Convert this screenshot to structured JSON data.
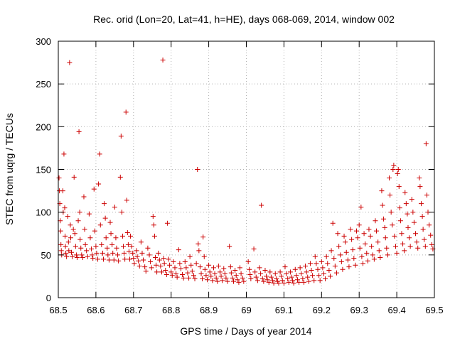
{
  "chart_data": {
    "type": "scatter",
    "title": "Rec. orid (Lon=20, Lat=41, h=HE), days 068-069, 2014, window 002",
    "xlabel": "GPS time / Days of year 2014",
    "ylabel": "STEC from uqrg / TECUs",
    "xlim": [
      68.5,
      69.5
    ],
    "ylim": [
      0,
      300
    ],
    "xticks": [
      68.5,
      68.6,
      68.7,
      68.8,
      68.9,
      69.0,
      69.1,
      69.2,
      69.3,
      69.4,
      69.5
    ],
    "xtick_labels": [
      "68.5",
      "68.6",
      "68.7",
      "68.8",
      "68.9",
      "69",
      "69.1",
      "69.2",
      "69.3",
      "69.4",
      "69.5"
    ],
    "yticks": [
      0,
      50,
      100,
      150,
      200,
      250,
      300
    ],
    "ytick_labels": [
      "0",
      "50",
      "100",
      "150",
      "200",
      "250",
      "300"
    ],
    "grid": true,
    "marker": "+",
    "color": "#cc0000",
    "points": [
      [
        68.502,
        140
      ],
      [
        68.503,
        125
      ],
      [
        68.504,
        110
      ],
      [
        68.505,
        90
      ],
      [
        68.506,
        78
      ],
      [
        68.507,
        62
      ],
      [
        68.508,
        55
      ],
      [
        68.509,
        50
      ],
      [
        68.512,
        125
      ],
      [
        68.513,
        100
      ],
      [
        68.515,
        168
      ],
      [
        68.517,
        105
      ],
      [
        68.518,
        72
      ],
      [
        68.519,
        60
      ],
      [
        68.52,
        52
      ],
      [
        68.522,
        48
      ],
      [
        68.525,
        95
      ],
      [
        68.527,
        65
      ],
      [
        68.528,
        55
      ],
      [
        68.53,
        275
      ],
      [
        68.532,
        85
      ],
      [
        68.533,
        70
      ],
      [
        68.535,
        53
      ],
      [
        68.537,
        48
      ],
      [
        68.54,
        80
      ],
      [
        68.542,
        141
      ],
      [
        68.544,
        75
      ],
      [
        68.546,
        60
      ],
      [
        68.548,
        50
      ],
      [
        68.55,
        47
      ],
      [
        68.553,
        90
      ],
      [
        68.555,
        194
      ],
      [
        68.557,
        100
      ],
      [
        68.558,
        68
      ],
      [
        68.56,
        58
      ],
      [
        68.562,
        50
      ],
      [
        68.565,
        47
      ],
      [
        68.568,
        118
      ],
      [
        68.57,
        80
      ],
      [
        68.572,
        62
      ],
      [
        68.575,
        55
      ],
      [
        68.578,
        48
      ],
      [
        68.582,
        98
      ],
      [
        68.585,
        70
      ],
      [
        68.588,
        57
      ],
      [
        68.59,
        50
      ],
      [
        68.592,
        46
      ],
      [
        68.595,
        127
      ],
      [
        68.597,
        78
      ],
      [
        68.6,
        60
      ],
      [
        68.602,
        52
      ],
      [
        68.605,
        45
      ],
      [
        68.607,
        133
      ],
      [
        68.61,
        168
      ],
      [
        68.612,
        85
      ],
      [
        68.615,
        62
      ],
      [
        68.618,
        52
      ],
      [
        68.62,
        45
      ],
      [
        68.622,
        110
      ],
      [
        68.625,
        93
      ],
      [
        68.627,
        70
      ],
      [
        68.63,
        58
      ],
      [
        68.632,
        50
      ],
      [
        68.635,
        44
      ],
      [
        68.638,
        88
      ],
      [
        68.64,
        75
      ],
      [
        68.643,
        62
      ],
      [
        68.645,
        52
      ],
      [
        68.648,
        44
      ],
      [
        68.65,
        106
      ],
      [
        68.653,
        70
      ],
      [
        68.655,
        58
      ],
      [
        68.658,
        50
      ],
      [
        68.66,
        43
      ],
      [
        68.665,
        141
      ],
      [
        68.667,
        189
      ],
      [
        68.669,
        100
      ],
      [
        68.671,
        72
      ],
      [
        68.673,
        60
      ],
      [
        68.675,
        52
      ],
      [
        68.677,
        45
      ],
      [
        68.68,
        217
      ],
      [
        68.682,
        114
      ],
      [
        68.684,
        76
      ],
      [
        68.686,
        62
      ],
      [
        68.688,
        54
      ],
      [
        68.69,
        45
      ],
      [
        68.692,
        72
      ],
      [
        68.695,
        60
      ],
      [
        68.698,
        52
      ],
      [
        68.7,
        46
      ],
      [
        68.702,
        40
      ],
      [
        68.708,
        55
      ],
      [
        68.71,
        48
      ],
      [
        68.713,
        43
      ],
      [
        68.716,
        37
      ],
      [
        68.72,
        65
      ],
      [
        68.723,
        52
      ],
      [
        68.726,
        44
      ],
      [
        68.73,
        36
      ],
      [
        68.733,
        31
      ],
      [
        68.738,
        58
      ],
      [
        68.742,
        50
      ],
      [
        68.745,
        42
      ],
      [
        68.748,
        35
      ],
      [
        68.752,
        95
      ],
      [
        68.754,
        85
      ],
      [
        68.756,
        72
      ],
      [
        68.758,
        47
      ],
      [
        68.76,
        38
      ],
      [
        68.762,
        30
      ],
      [
        68.766,
        52
      ],
      [
        68.769,
        44
      ],
      [
        68.772,
        37
      ],
      [
        68.775,
        30
      ],
      [
        68.778,
        278
      ],
      [
        68.78,
        46
      ],
      [
        68.782,
        40
      ],
      [
        68.785,
        32
      ],
      [
        68.788,
        27
      ],
      [
        68.79,
        87
      ],
      [
        68.793,
        45
      ],
      [
        68.796,
        38
      ],
      [
        68.8,
        30
      ],
      [
        68.803,
        26
      ],
      [
        68.806,
        42
      ],
      [
        68.81,
        35
      ],
      [
        68.813,
        28
      ],
      [
        68.816,
        24
      ],
      [
        68.82,
        56
      ],
      [
        68.823,
        40
      ],
      [
        68.826,
        34
      ],
      [
        68.83,
        27
      ],
      [
        68.833,
        23
      ],
      [
        68.837,
        42
      ],
      [
        68.84,
        35
      ],
      [
        68.844,
        29
      ],
      [
        68.847,
        23
      ],
      [
        68.85,
        48
      ],
      [
        68.853,
        38
      ],
      [
        68.856,
        31
      ],
      [
        68.86,
        26
      ],
      [
        68.863,
        22
      ],
      [
        68.867,
        40
      ],
      [
        68.87,
        150
      ],
      [
        68.872,
        63
      ],
      [
        68.874,
        55
      ],
      [
        68.877,
        36
      ],
      [
        68.88,
        28
      ],
      [
        68.883,
        22
      ],
      [
        68.885,
        71
      ],
      [
        68.888,
        48
      ],
      [
        68.89,
        33
      ],
      [
        68.893,
        26
      ],
      [
        68.896,
        21
      ],
      [
        68.9,
        38
      ],
      [
        68.903,
        30
      ],
      [
        68.906,
        25
      ],
      [
        68.91,
        20
      ],
      [
        68.913,
        35
      ],
      [
        68.916,
        28
      ],
      [
        68.92,
        23
      ],
      [
        68.923,
        19
      ],
      [
        68.926,
        37
      ],
      [
        68.93,
        30
      ],
      [
        68.933,
        25
      ],
      [
        68.936,
        20
      ],
      [
        68.94,
        34
      ],
      [
        68.943,
        28
      ],
      [
        68.946,
        23
      ],
      [
        68.95,
        19
      ],
      [
        68.955,
        60
      ],
      [
        68.958,
        36
      ],
      [
        68.96,
        29
      ],
      [
        68.963,
        23
      ],
      [
        68.966,
        19
      ],
      [
        68.97,
        32
      ],
      [
        68.973,
        26
      ],
      [
        68.976,
        21
      ],
      [
        68.98,
        18
      ],
      [
        68.983,
        35
      ],
      [
        68.986,
        28
      ],
      [
        68.99,
        23
      ],
      [
        68.993,
        19
      ],
      [
        69.005,
        42
      ],
      [
        69.008,
        33
      ],
      [
        69.01,
        27
      ],
      [
        69.012,
        22
      ],
      [
        69.02,
        57
      ],
      [
        69.023,
        30
      ],
      [
        69.026,
        24
      ],
      [
        69.03,
        20
      ],
      [
        69.035,
        35
      ],
      [
        69.038,
        28
      ],
      [
        69.04,
        108
      ],
      [
        69.043,
        22
      ],
      [
        69.046,
        19
      ],
      [
        69.05,
        32
      ],
      [
        69.053,
        25
      ],
      [
        69.056,
        21
      ],
      [
        69.06,
        18
      ],
      [
        69.063,
        30
      ],
      [
        69.066,
        24
      ],
      [
        69.07,
        20
      ],
      [
        69.073,
        17
      ],
      [
        69.077,
        28
      ],
      [
        69.08,
        22
      ],
      [
        69.083,
        19
      ],
      [
        69.086,
        17
      ],
      [
        69.09,
        30
      ],
      [
        69.093,
        25
      ],
      [
        69.096,
        20
      ],
      [
        69.1,
        17
      ],
      [
        69.103,
        36
      ],
      [
        69.106,
        28
      ],
      [
        69.11,
        22
      ],
      [
        69.113,
        18
      ],
      [
        69.117,
        30
      ],
      [
        69.12,
        24
      ],
      [
        69.123,
        20
      ],
      [
        69.126,
        17
      ],
      [
        69.13,
        33
      ],
      [
        69.133,
        26
      ],
      [
        69.136,
        21
      ],
      [
        69.14,
        18
      ],
      [
        69.143,
        35
      ],
      [
        69.146,
        28
      ],
      [
        69.15,
        22
      ],
      [
        69.153,
        18
      ],
      [
        69.157,
        37
      ],
      [
        69.16,
        30
      ],
      [
        69.163,
        24
      ],
      [
        69.166,
        19
      ],
      [
        69.17,
        40
      ],
      [
        69.173,
        32
      ],
      [
        69.176,
        26
      ],
      [
        69.18,
        20
      ],
      [
        69.183,
        48
      ],
      [
        69.186,
        40
      ],
      [
        69.19,
        33
      ],
      [
        69.193,
        26
      ],
      [
        69.196,
        20
      ],
      [
        69.2,
        42
      ],
      [
        69.203,
        35
      ],
      [
        69.206,
        28
      ],
      [
        69.21,
        22
      ],
      [
        69.213,
        48
      ],
      [
        69.216,
        40
      ],
      [
        69.22,
        32
      ],
      [
        69.223,
        25
      ],
      [
        69.226,
        55
      ],
      [
        69.23,
        87
      ],
      [
        69.233,
        46
      ],
      [
        69.236,
        37
      ],
      [
        69.24,
        29
      ],
      [
        69.243,
        75
      ],
      [
        69.246,
        60
      ],
      [
        69.25,
        50
      ],
      [
        69.253,
        42
      ],
      [
        69.256,
        33
      ],
      [
        69.26,
        72
      ],
      [
        69.263,
        65
      ],
      [
        69.266,
        53
      ],
      [
        69.27,
        44
      ],
      [
        69.273,
        36
      ],
      [
        69.277,
        80
      ],
      [
        69.28,
        68
      ],
      [
        69.283,
        56
      ],
      [
        69.286,
        46
      ],
      [
        69.29,
        38
      ],
      [
        69.293,
        78
      ],
      [
        69.296,
        70
      ],
      [
        69.3,
        85
      ],
      [
        69.302,
        58
      ],
      [
        69.305,
        106
      ],
      [
        69.307,
        48
      ],
      [
        69.31,
        40
      ],
      [
        69.313,
        75
      ],
      [
        69.316,
        63
      ],
      [
        69.32,
        52
      ],
      [
        69.323,
        43
      ],
      [
        69.326,
        80
      ],
      [
        69.33,
        72
      ],
      [
        69.333,
        60
      ],
      [
        69.336,
        50
      ],
      [
        69.34,
        45
      ],
      [
        69.343,
        90
      ],
      [
        69.346,
        78
      ],
      [
        69.35,
        65
      ],
      [
        69.353,
        55
      ],
      [
        69.356,
        47
      ],
      [
        69.36,
        125
      ],
      [
        69.362,
        108
      ],
      [
        69.365,
        92
      ],
      [
        69.368,
        82
      ],
      [
        69.37,
        70
      ],
      [
        69.373,
        58
      ],
      [
        69.376,
        50
      ],
      [
        69.38,
        140
      ],
      [
        69.382,
        120
      ],
      [
        69.385,
        100
      ],
      [
        69.388,
        85
      ],
      [
        69.39,
        150
      ],
      [
        69.392,
        155
      ],
      [
        69.394,
        72
      ],
      [
        69.397,
        60
      ],
      [
        69.4,
        52
      ],
      [
        69.402,
        145
      ],
      [
        69.404,
        150
      ],
      [
        69.406,
        130
      ],
      [
        69.408,
        105
      ],
      [
        69.41,
        90
      ],
      [
        69.413,
        75
      ],
      [
        69.416,
        63
      ],
      [
        69.42,
        55
      ],
      [
        69.422,
        123
      ],
      [
        69.425,
        110
      ],
      [
        69.428,
        98
      ],
      [
        69.43,
        82
      ],
      [
        69.433,
        70
      ],
      [
        69.436,
        60
      ],
      [
        69.44,
        115
      ],
      [
        69.443,
        100
      ],
      [
        69.446,
        88
      ],
      [
        69.45,
        75
      ],
      [
        69.453,
        65
      ],
      [
        69.456,
        58
      ],
      [
        69.46,
        140
      ],
      [
        69.462,
        130
      ],
      [
        69.465,
        110
      ],
      [
        69.468,
        95
      ],
      [
        69.47,
        80
      ],
      [
        69.473,
        68
      ],
      [
        69.476,
        60
      ],
      [
        69.478,
        180
      ],
      [
        69.48,
        120
      ],
      [
        69.483,
        100
      ],
      [
        69.486,
        85
      ],
      [
        69.49,
        73
      ],
      [
        69.493,
        62
      ],
      [
        69.496,
        57
      ]
    ]
  }
}
